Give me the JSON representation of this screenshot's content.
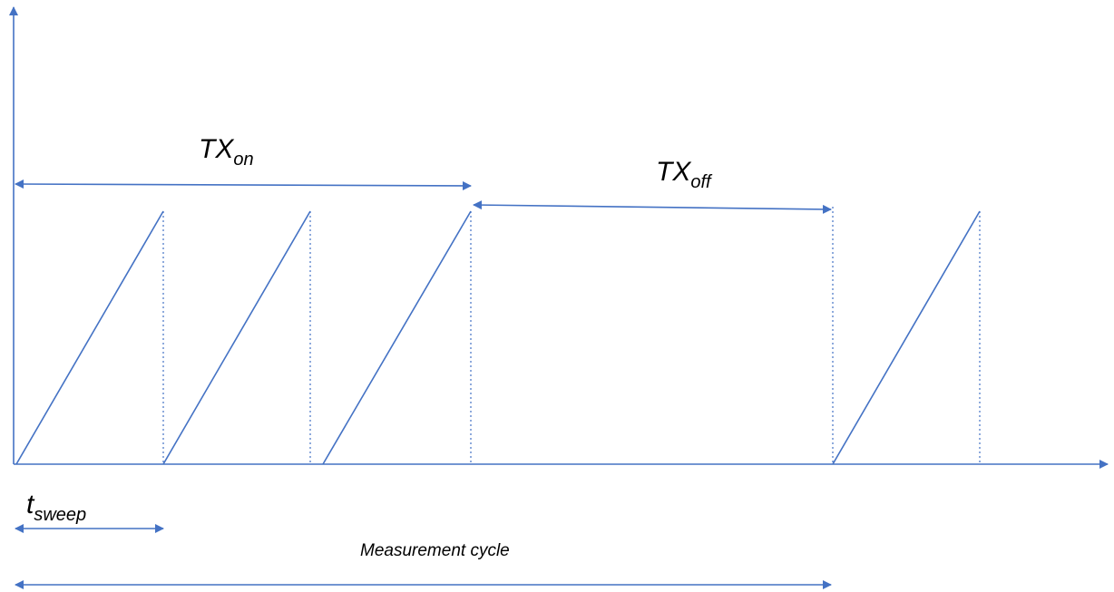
{
  "labels": {
    "tx_on": {
      "main": "TX",
      "sub": "on"
    },
    "tx_off": {
      "main": "TX",
      "sub": "off"
    },
    "t_sweep": {
      "main": "t",
      "sub": "sweep"
    },
    "measurement_cycle": "Measurement cycle"
  },
  "colors": {
    "line": "#4472c4",
    "text": "#000000",
    "background": "#ffffff"
  }
}
